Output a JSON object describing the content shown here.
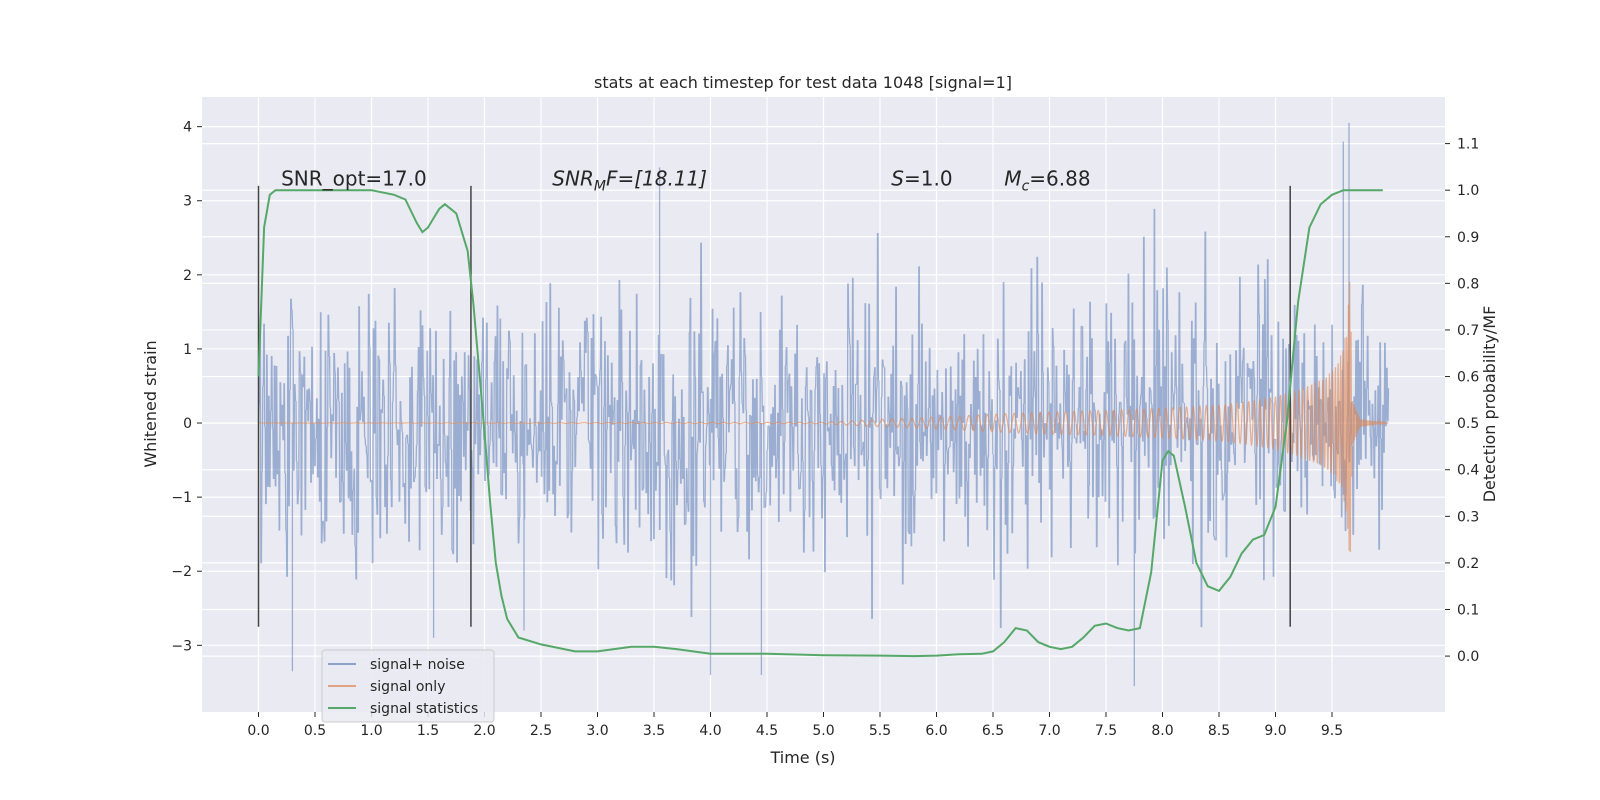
{
  "chart_data": {
    "type": "line",
    "title": "stats at each timestep for test data 1048 [signal=1]",
    "xlabel": "Time (s)",
    "ylabel": "Whitened strain",
    "y2label": "Detection probability/MF",
    "xlim": [
      -0.5,
      10.5
    ],
    "ylim": [
      -3.9,
      4.4
    ],
    "y2lim": [
      -0.12,
      1.2
    ],
    "x_ticks": [
      "0.0",
      "0.5",
      "1.0",
      "1.5",
      "2.0",
      "2.5",
      "3.0",
      "3.5",
      "4.0",
      "4.5",
      "5.0",
      "5.5",
      "6.0",
      "6.5",
      "7.0",
      "7.5",
      "8.0",
      "8.5",
      "9.0",
      "9.5"
    ],
    "y_ticks": [
      "−3",
      "−2",
      "−1",
      "0",
      "1",
      "2",
      "3",
      "4"
    ],
    "y2_ticks": [
      "0.0",
      "0.1",
      "0.2",
      "0.3",
      "0.4",
      "0.5",
      "0.6",
      "0.7",
      "0.8",
      "0.9",
      "1.0",
      "1.1"
    ],
    "grid": true,
    "legend_position": "bottom-left",
    "colors": {
      "background": "#eaeaf2",
      "grid": "#ffffff",
      "noise": "#4c72b0",
      "signal": "#dd8452",
      "stats": "#55a868",
      "vline": "#444444"
    },
    "series": [
      {
        "name": "signal+ noise",
        "kind": "noise_band",
        "x_range": [
          0.0,
          10.0
        ],
        "typical_amplitude": 1.4,
        "peak_values": [
          [
            9.65,
            4.05
          ],
          [
            9.6,
            3.8
          ],
          [
            3.55,
            3.45
          ],
          [
            4.45,
            -3.4
          ],
          [
            4.0,
            -3.4
          ],
          [
            7.75,
            -3.55
          ],
          [
            1.55,
            -2.9
          ],
          [
            2.35,
            -2.8
          ],
          [
            0.3,
            -3.35
          ]
        ]
      },
      {
        "name": "signal only",
        "kind": "chirp_envelope",
        "x": [
          0,
          5.0,
          5.5,
          6.0,
          6.5,
          7.0,
          7.5,
          8.0,
          8.5,
          8.8,
          9.0,
          9.2,
          9.4,
          9.5,
          9.55,
          9.6,
          9.63,
          9.65,
          9.66,
          9.68,
          9.75,
          10.0
        ],
        "envelope": [
          0,
          0.01,
          0.05,
          0.08,
          0.12,
          0.15,
          0.17,
          0.2,
          0.24,
          0.3,
          0.36,
          0.45,
          0.58,
          0.7,
          0.82,
          1.0,
          1.3,
          1.7,
          2.0,
          0.3,
          0.05,
          0.0
        ]
      },
      {
        "name": "signal statistics",
        "axis": "right",
        "x": [
          0.0,
          0.05,
          0.1,
          0.15,
          0.2,
          0.3,
          0.5,
          1.0,
          1.2,
          1.3,
          1.4,
          1.45,
          1.5,
          1.55,
          1.6,
          1.65,
          1.7,
          1.75,
          1.8,
          1.85,
          1.9,
          1.95,
          2.0,
          2.05,
          2.1,
          2.15,
          2.2,
          2.3,
          2.5,
          2.8,
          3.0,
          3.3,
          3.5,
          3.7,
          4.0,
          4.5,
          5.0,
          5.5,
          5.8,
          6.0,
          6.2,
          6.4,
          6.5,
          6.6,
          6.7,
          6.8,
          6.9,
          7.0,
          7.1,
          7.2,
          7.3,
          7.4,
          7.5,
          7.6,
          7.7,
          7.8,
          7.9,
          8.0,
          8.05,
          8.1,
          8.2,
          8.3,
          8.4,
          8.5,
          8.6,
          8.7,
          8.8,
          8.9,
          9.0,
          9.1,
          9.2,
          9.3,
          9.4,
          9.5,
          9.6,
          9.8,
          9.95
        ],
        "values": [
          0.6,
          0.92,
          0.99,
          1.0,
          1.0,
          1.0,
          1.0,
          1.0,
          0.99,
          0.98,
          0.93,
          0.91,
          0.92,
          0.94,
          0.96,
          0.97,
          0.96,
          0.95,
          0.91,
          0.87,
          0.76,
          0.62,
          0.48,
          0.33,
          0.2,
          0.13,
          0.08,
          0.04,
          0.025,
          0.01,
          0.01,
          0.02,
          0.02,
          0.015,
          0.005,
          0.005,
          0.002,
          0.001,
          0.0,
          0.001,
          0.004,
          0.005,
          0.01,
          0.03,
          0.06,
          0.055,
          0.03,
          0.02,
          0.015,
          0.02,
          0.04,
          0.065,
          0.07,
          0.06,
          0.055,
          0.06,
          0.18,
          0.42,
          0.44,
          0.43,
          0.32,
          0.2,
          0.15,
          0.14,
          0.17,
          0.22,
          0.25,
          0.26,
          0.32,
          0.5,
          0.76,
          0.92,
          0.97,
          0.99,
          1.0,
          1.0,
          1.0
        ]
      }
    ],
    "vertical_lines": [
      {
        "x": 0.0,
        "y_from": -2.75,
        "y_to": 3.2
      },
      {
        "x": 1.88,
        "y_from": -2.75,
        "y_to": 3.2
      },
      {
        "x": 9.13,
        "y_from": -2.75,
        "y_to": 3.2
      }
    ],
    "annotations": [
      {
        "x": 0.2,
        "y": 3.3,
        "text": "SNR_opt=17.0"
      },
      {
        "x": 2.6,
        "y": 3.3,
        "base": "SNR",
        "sub": "M",
        "rest": "F=[18.11]"
      },
      {
        "x": 5.6,
        "y": 3.3,
        "base": "S",
        "sub": "",
        "rest": "=1.0"
      },
      {
        "x": 6.6,
        "y": 3.3,
        "base": "M",
        "sub": "c",
        "rest": "=6.88"
      }
    ]
  }
}
